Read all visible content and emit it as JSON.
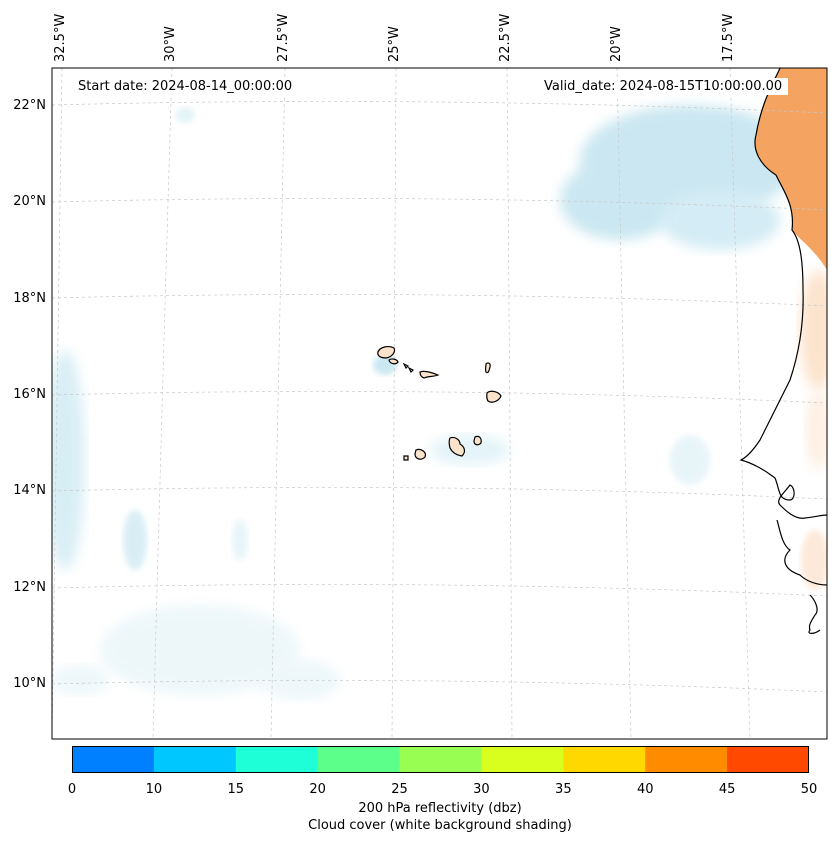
{
  "map": {
    "start_label": "Start date: 2024-08-14_00:00:00",
    "valid_label": "Valid_date: 2024-08-15T10:00:00.00",
    "lon_labels": [
      "32.5°W",
      "30°W",
      "27.5°W",
      "25°W",
      "22.5°W",
      "20°W",
      "17.5°W"
    ],
    "lat_labels": [
      "22°N",
      "20°N",
      "18°N",
      "16°N",
      "14°N",
      "12°N",
      "10°N"
    ]
  },
  "colorbar": {
    "ticks": [
      "0",
      "10",
      "15",
      "20",
      "25",
      "30",
      "35",
      "40",
      "45",
      "50"
    ],
    "colors": [
      "#0080ff",
      "#00c8ff",
      "#1effd8",
      "#5cff8a",
      "#98ff52",
      "#d8ff1e",
      "#ffd800",
      "#ff8c00",
      "#ff4800"
    ],
    "label_1": "200 hPa reflectivity (dbz)",
    "label_2": "Cloud cover (white background shading)"
  },
  "colors": {
    "land_fill": "#f4a460",
    "cloud": "#a9d8e8"
  }
}
